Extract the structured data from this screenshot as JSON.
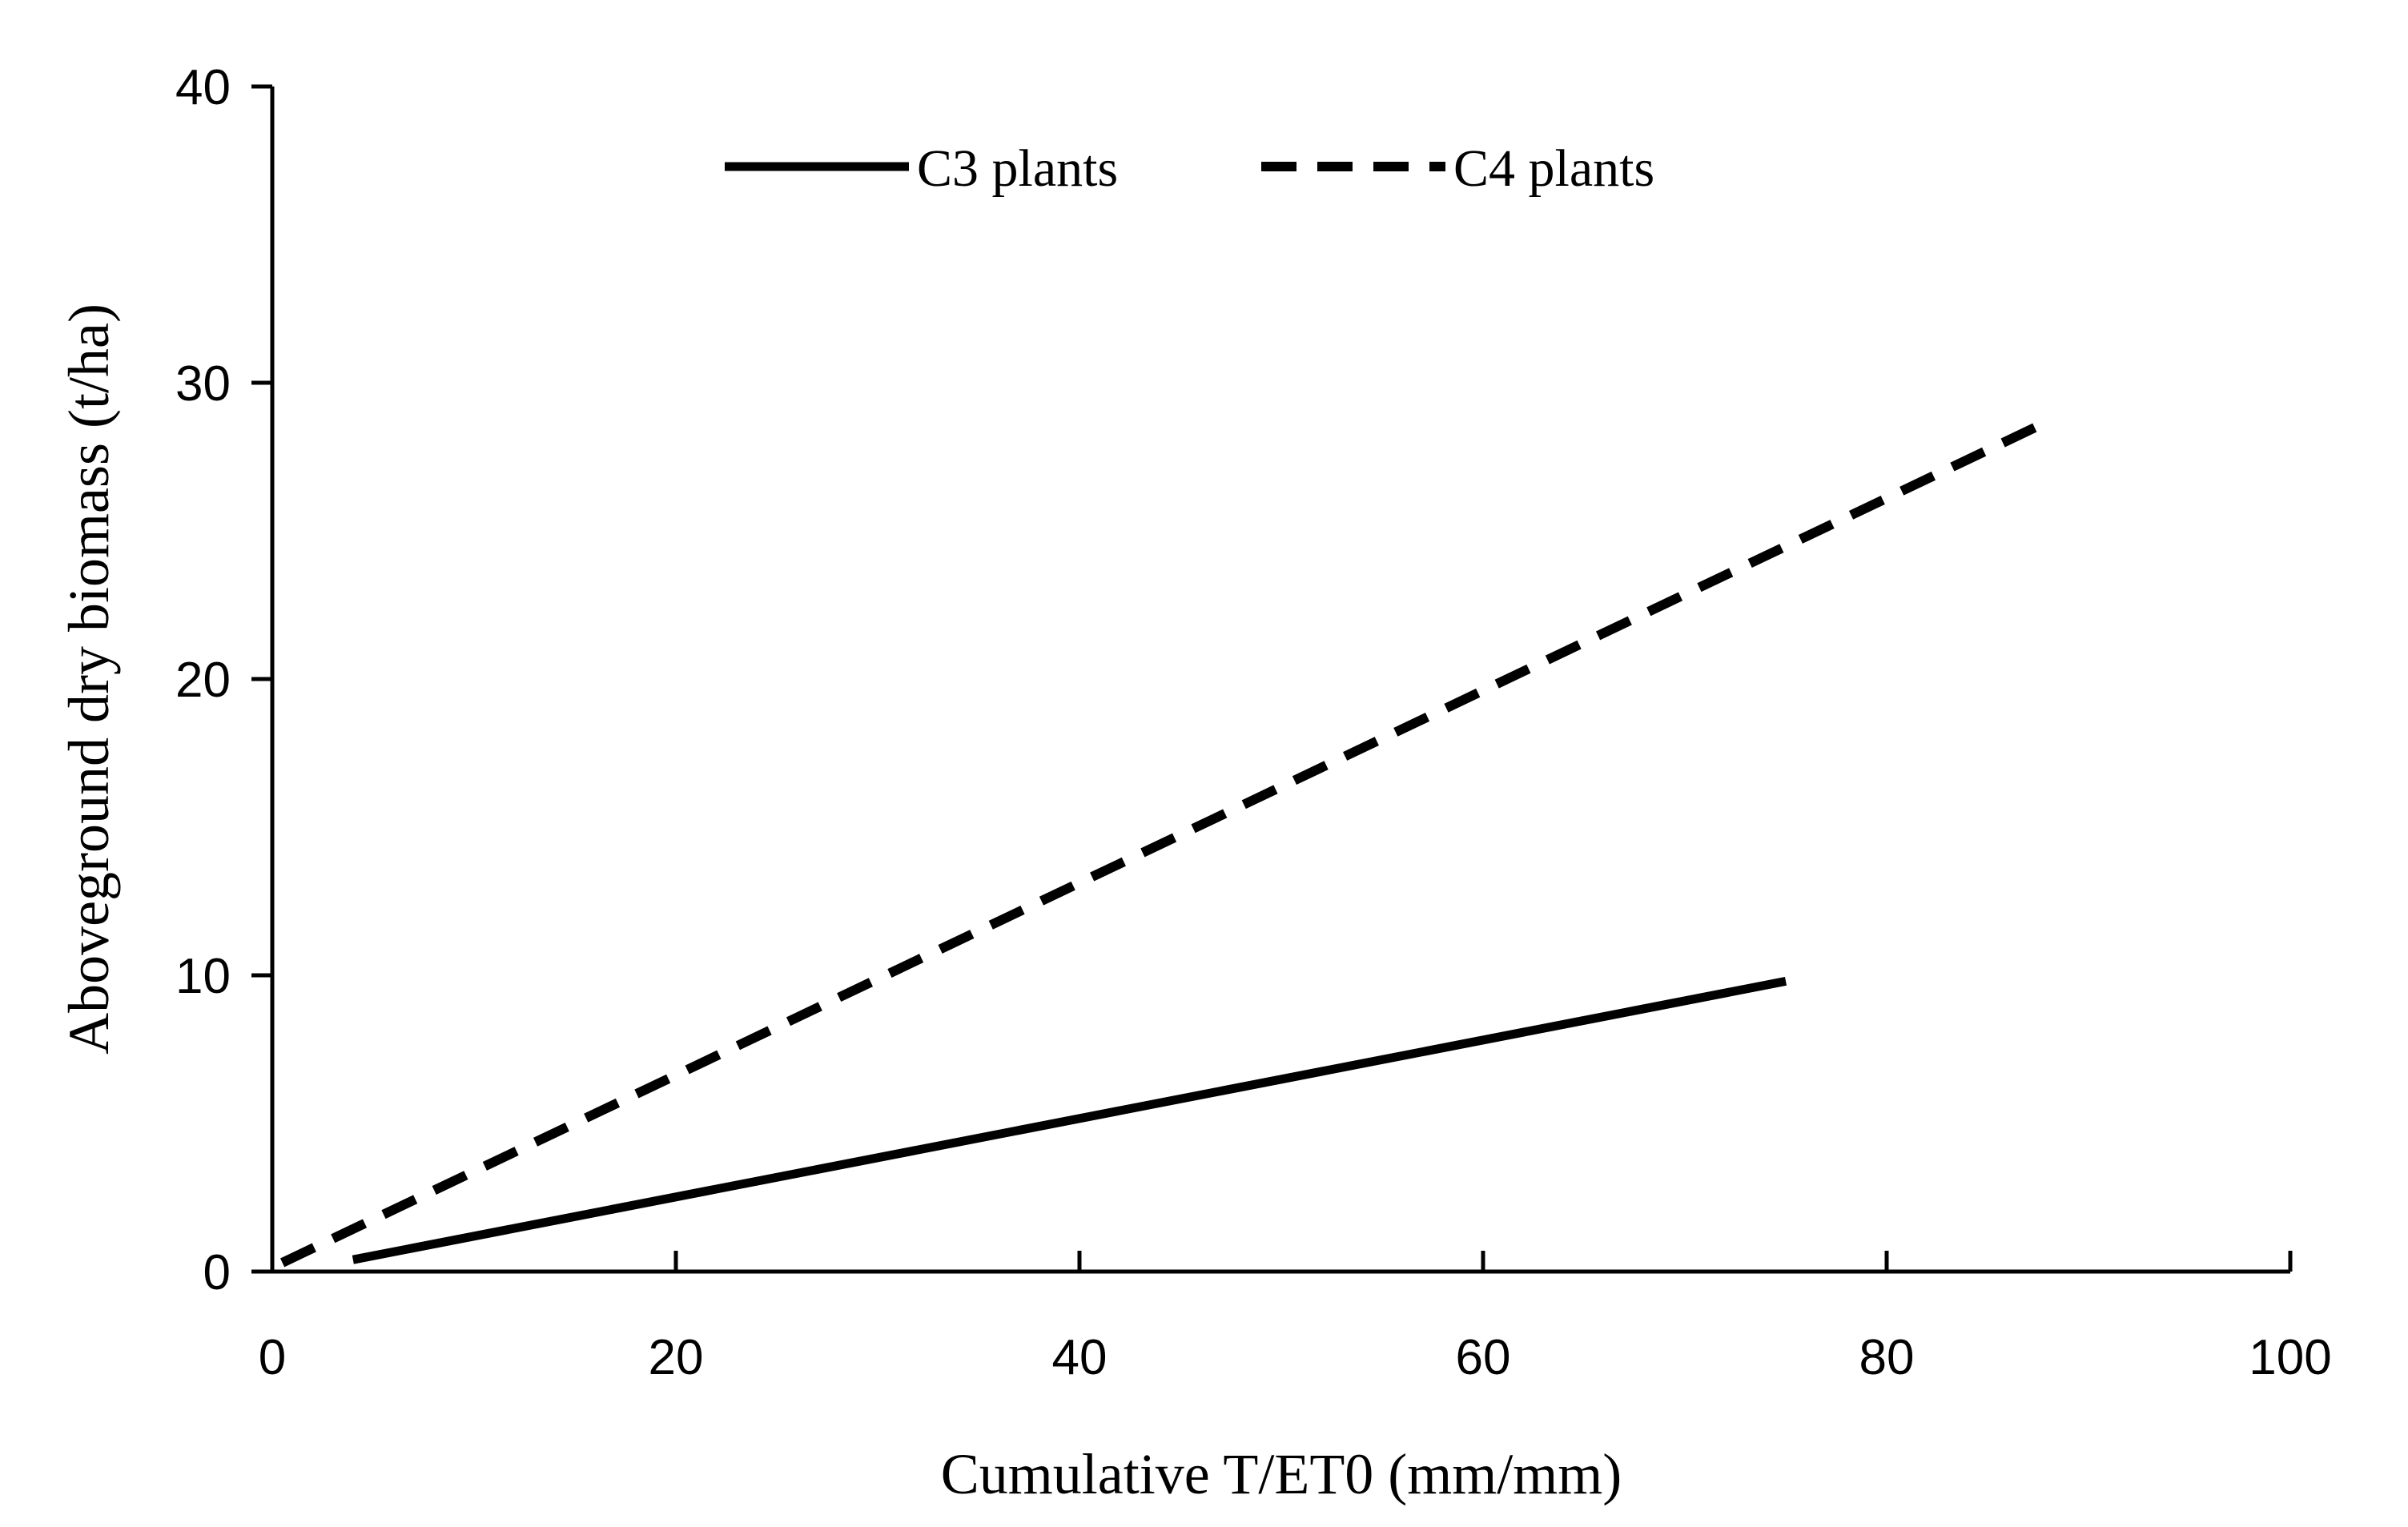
{
  "chart_data": {
    "type": "line",
    "title": "",
    "xlabel": "Cumulative T/ET0 (mm/mm)",
    "ylabel": "Aboveground dry biomass (t/ha)",
    "xlim": [
      0,
      100
    ],
    "ylim": [
      0,
      40
    ],
    "xticks": [
      0,
      20,
      40,
      60,
      80,
      100
    ],
    "yticks": [
      0,
      10,
      20,
      30,
      40
    ],
    "grid": false,
    "legend_position": "top-center",
    "series": [
      {
        "name": "C3 plants",
        "style": "solid",
        "color": "#000000",
        "x": [
          4,
          75
        ],
        "y": [
          0.4,
          9.8
        ]
      },
      {
        "name": "C4 plants",
        "style": "dashed",
        "color": "#000000",
        "x": [
          0.5,
          88
        ],
        "y": [
          0.3,
          28.7
        ]
      }
    ]
  }
}
